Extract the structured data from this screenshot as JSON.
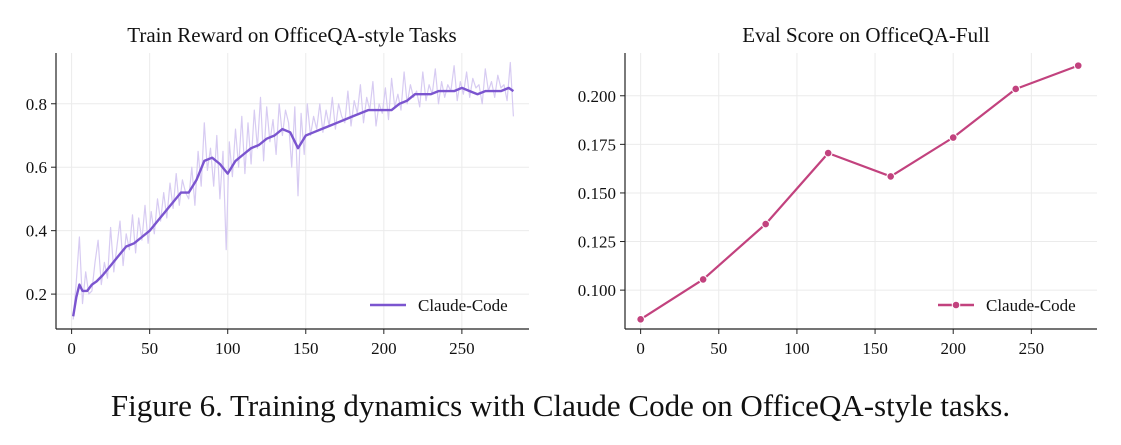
{
  "caption": "Figure 6. Training dynamics with Claude Code on OfficeQA-style tasks.",
  "chart_data": [
    {
      "type": "line",
      "title": "Train Reward on OfficeQA-style Tasks",
      "xlabel": "",
      "ylabel": "",
      "xlim": [
        -10,
        293
      ],
      "ylim": [
        0.09,
        0.96
      ],
      "xticks": [
        0,
        50,
        100,
        150,
        200,
        250
      ],
      "yticks": [
        0.2,
        0.4,
        0.6,
        0.8
      ],
      "ytick_labels": [
        "0.2",
        "0.4",
        "0.6",
        "0.8"
      ],
      "grid": true,
      "legend": "lower-right",
      "colors": {
        "smoothed": "#7b55cf",
        "raw": "#d7cbf2"
      },
      "series": [
        {
          "name": "Claude-Code",
          "style": "smoothed",
          "x": [
            1,
            3,
            5,
            7,
            10,
            13,
            16,
            20,
            25,
            30,
            35,
            40,
            45,
            50,
            55,
            60,
            65,
            70,
            75,
            80,
            85,
            90,
            95,
            100,
            105,
            110,
            115,
            120,
            125,
            130,
            135,
            140,
            145,
            150,
            155,
            160,
            165,
            170,
            175,
            180,
            185,
            190,
            195,
            200,
            205,
            210,
            215,
            220,
            225,
            230,
            235,
            240,
            245,
            250,
            255,
            260,
            265,
            270,
            275,
            280,
            283
          ],
          "y": [
            0.13,
            0.19,
            0.23,
            0.21,
            0.21,
            0.23,
            0.24,
            0.26,
            0.29,
            0.32,
            0.35,
            0.36,
            0.38,
            0.4,
            0.43,
            0.46,
            0.49,
            0.52,
            0.52,
            0.56,
            0.62,
            0.63,
            0.61,
            0.58,
            0.62,
            0.64,
            0.66,
            0.67,
            0.69,
            0.7,
            0.72,
            0.71,
            0.66,
            0.7,
            0.71,
            0.72,
            0.73,
            0.74,
            0.75,
            0.76,
            0.77,
            0.78,
            0.78,
            0.78,
            0.78,
            0.8,
            0.81,
            0.83,
            0.83,
            0.83,
            0.84,
            0.84,
            0.84,
            0.85,
            0.84,
            0.83,
            0.84,
            0.84,
            0.84,
            0.85,
            0.84
          ]
        },
        {
          "style": "raw",
          "x": [
            1,
            3,
            5,
            7,
            9,
            11,
            13,
            15,
            17,
            19,
            21,
            23,
            25,
            27,
            29,
            31,
            33,
            35,
            37,
            39,
            41,
            43,
            45,
            47,
            49,
            51,
            53,
            55,
            57,
            59,
            61,
            63,
            65,
            67,
            69,
            71,
            73,
            75,
            77,
            79,
            81,
            83,
            85,
            87,
            89,
            91,
            93,
            95,
            97,
            99,
            101,
            103,
            105,
            107,
            109,
            111,
            113,
            115,
            117,
            119,
            121,
            123,
            125,
            127,
            129,
            131,
            133,
            135,
            137,
            139,
            141,
            143,
            145,
            147,
            149,
            151,
            153,
            155,
            157,
            159,
            161,
            163,
            165,
            167,
            169,
            171,
            173,
            175,
            177,
            179,
            181,
            183,
            185,
            187,
            189,
            191,
            193,
            195,
            197,
            199,
            201,
            203,
            205,
            207,
            209,
            211,
            213,
            215,
            217,
            219,
            221,
            223,
            225,
            227,
            229,
            231,
            233,
            235,
            237,
            239,
            241,
            243,
            245,
            247,
            249,
            251,
            253,
            255,
            257,
            259,
            261,
            263,
            265,
            267,
            269,
            271,
            273,
            275,
            277,
            279,
            281,
            283
          ],
          "y": [
            0.12,
            0.24,
            0.38,
            0.17,
            0.27,
            0.2,
            0.21,
            0.3,
            0.37,
            0.23,
            0.3,
            0.25,
            0.41,
            0.27,
            0.35,
            0.43,
            0.29,
            0.39,
            0.34,
            0.45,
            0.33,
            0.44,
            0.37,
            0.48,
            0.36,
            0.46,
            0.39,
            0.5,
            0.43,
            0.52,
            0.44,
            0.55,
            0.47,
            0.58,
            0.48,
            0.56,
            0.52,
            0.5,
            0.6,
            0.48,
            0.65,
            0.54,
            0.74,
            0.59,
            0.66,
            0.54,
            0.7,
            0.5,
            0.65,
            0.34,
            0.68,
            0.57,
            0.72,
            0.6,
            0.76,
            0.58,
            0.74,
            0.61,
            0.78,
            0.66,
            0.82,
            0.62,
            0.79,
            0.68,
            0.75,
            0.64,
            0.8,
            0.7,
            0.78,
            0.74,
            0.6,
            0.79,
            0.51,
            0.77,
            0.64,
            0.8,
            0.7,
            0.76,
            0.72,
            0.8,
            0.71,
            0.78,
            0.73,
            0.82,
            0.72,
            0.8,
            0.76,
            0.74,
            0.84,
            0.73,
            0.81,
            0.77,
            0.86,
            0.74,
            0.82,
            0.78,
            0.87,
            0.73,
            0.8,
            0.77,
            0.85,
            0.75,
            0.88,
            0.79,
            0.83,
            0.78,
            0.9,
            0.8,
            0.86,
            0.82,
            0.84,
            0.79,
            0.9,
            0.81,
            0.86,
            0.83,
            0.91,
            0.8,
            0.87,
            0.82,
            0.86,
            0.84,
            0.92,
            0.81,
            0.87,
            0.83,
            0.9,
            0.82,
            0.88,
            0.85,
            0.86,
            0.8,
            0.91,
            0.84,
            0.87,
            0.82,
            0.89,
            0.85,
            0.86,
            0.81,
            0.93,
            0.76
          ]
        }
      ]
    },
    {
      "type": "line",
      "title": "Eval Score on OfficeQA-Full",
      "xlabel": "",
      "ylabel": "",
      "xlim": [
        -10,
        292
      ],
      "ylim": [
        0.08,
        0.222
      ],
      "xticks": [
        0,
        50,
        100,
        150,
        200,
        250
      ],
      "yticks": [
        0.1,
        0.125,
        0.15,
        0.175,
        0.2
      ],
      "ytick_labels": [
        "0.100",
        "0.125",
        "0.150",
        "0.175",
        "0.200"
      ],
      "grid": true,
      "legend": "lower-right",
      "colors": {
        "line": "#c2427e"
      },
      "series": [
        {
          "name": "Claude-Code",
          "markers": true,
          "x": [
            0,
            40,
            80,
            120,
            160,
            200,
            240,
            280
          ],
          "y": [
            0.085,
            0.1055,
            0.134,
            0.1705,
            0.1585,
            0.1785,
            0.2035,
            0.2155
          ]
        }
      ]
    }
  ]
}
